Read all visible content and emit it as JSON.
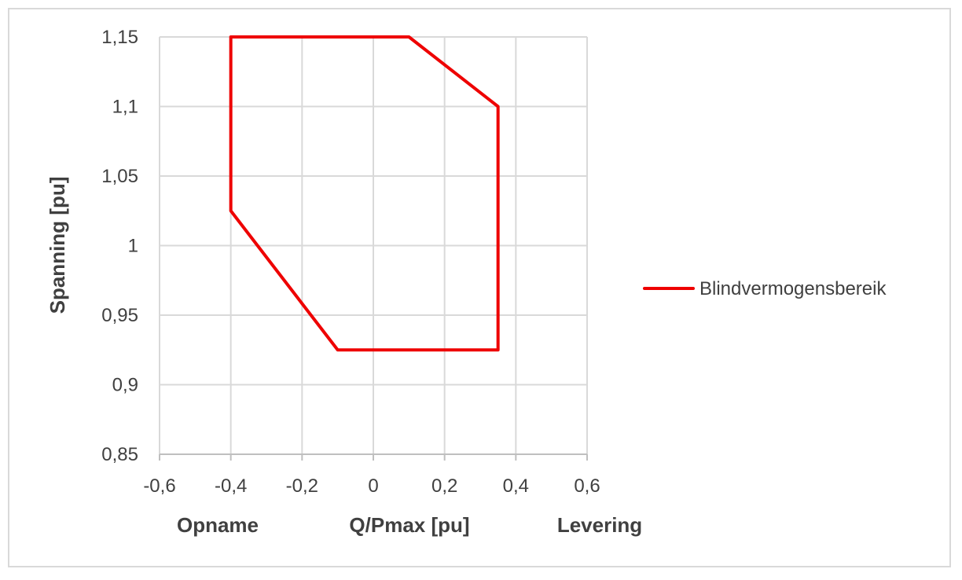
{
  "chart_data": {
    "type": "line",
    "xlim": [
      -0.6,
      0.6
    ],
    "ylim": [
      0.85,
      1.15
    ],
    "x_ticks": [
      -0.6,
      -0.4,
      -0.2,
      0,
      0.2,
      0.4,
      0.6
    ],
    "x_tick_labels": [
      "-0,6",
      "-0,4",
      "-0,2",
      "0",
      "0,2",
      "0,4",
      "0,6"
    ],
    "y_ticks": [
      0.85,
      0.9,
      0.95,
      1.0,
      1.05,
      1.1,
      1.15
    ],
    "y_tick_labels": [
      "0,85",
      "0,9",
      "0,95",
      "1",
      "1,05",
      "1,1",
      "1,15"
    ],
    "xlabel": "Q/Pmax [pu]",
    "xlabel_left": "Opname",
    "xlabel_right": "Levering",
    "ylabel": "Spanning [pu]",
    "grid": true,
    "legend_position": "right",
    "series": [
      {
        "name": "Blindvermogensbereik",
        "color": "#ee0000",
        "x": [
          -0.4,
          0.1,
          0.35,
          0.35,
          -0.1,
          -0.4,
          -0.4
        ],
        "y": [
          1.15,
          1.15,
          1.1,
          0.925,
          0.925,
          1.025,
          1.15
        ]
      }
    ]
  }
}
